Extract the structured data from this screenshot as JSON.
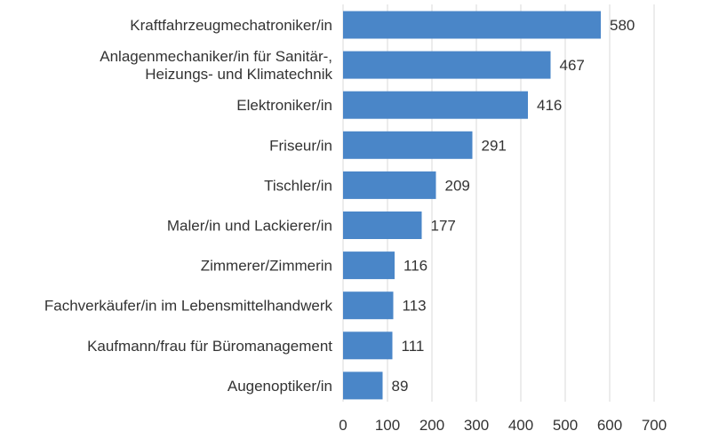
{
  "chart_data": {
    "type": "bar",
    "orientation": "horizontal",
    "title": "",
    "xlabel": "",
    "ylabel": "",
    "categories": [
      [
        "Kraftfahrzeugmechatroniker/in"
      ],
      [
        "Anlagenmechaniker/in für Sanitär-,",
        "Heizungs- und Klimatechnik"
      ],
      [
        "Elektroniker/in"
      ],
      [
        "Friseur/in"
      ],
      [
        "Tischler/in"
      ],
      [
        "Maler/in und Lackierer/in"
      ],
      [
        "Zimmerer/Zimmerin"
      ],
      [
        "Fachverkäufer/in im Lebensmittelhandwerk"
      ],
      [
        "Kaufmann/frau für Büromanagement"
      ],
      [
        "Augenoptiker/in"
      ]
    ],
    "values": [
      580,
      467,
      416,
      291,
      209,
      177,
      116,
      113,
      111,
      89
    ],
    "value_labels": [
      "580",
      "467",
      "416",
      "291",
      "209",
      "177",
      "116",
      "113",
      "111",
      "89"
    ],
    "xlim": [
      0,
      700
    ],
    "xticks": [
      0,
      100,
      200,
      300,
      400,
      500,
      600,
      700
    ],
    "xtick_labels": [
      "0",
      "100",
      "200",
      "300",
      "400",
      "500",
      "600",
      "700"
    ],
    "grid": true,
    "legend": "none",
    "bar_color": "#4a86c8"
  }
}
